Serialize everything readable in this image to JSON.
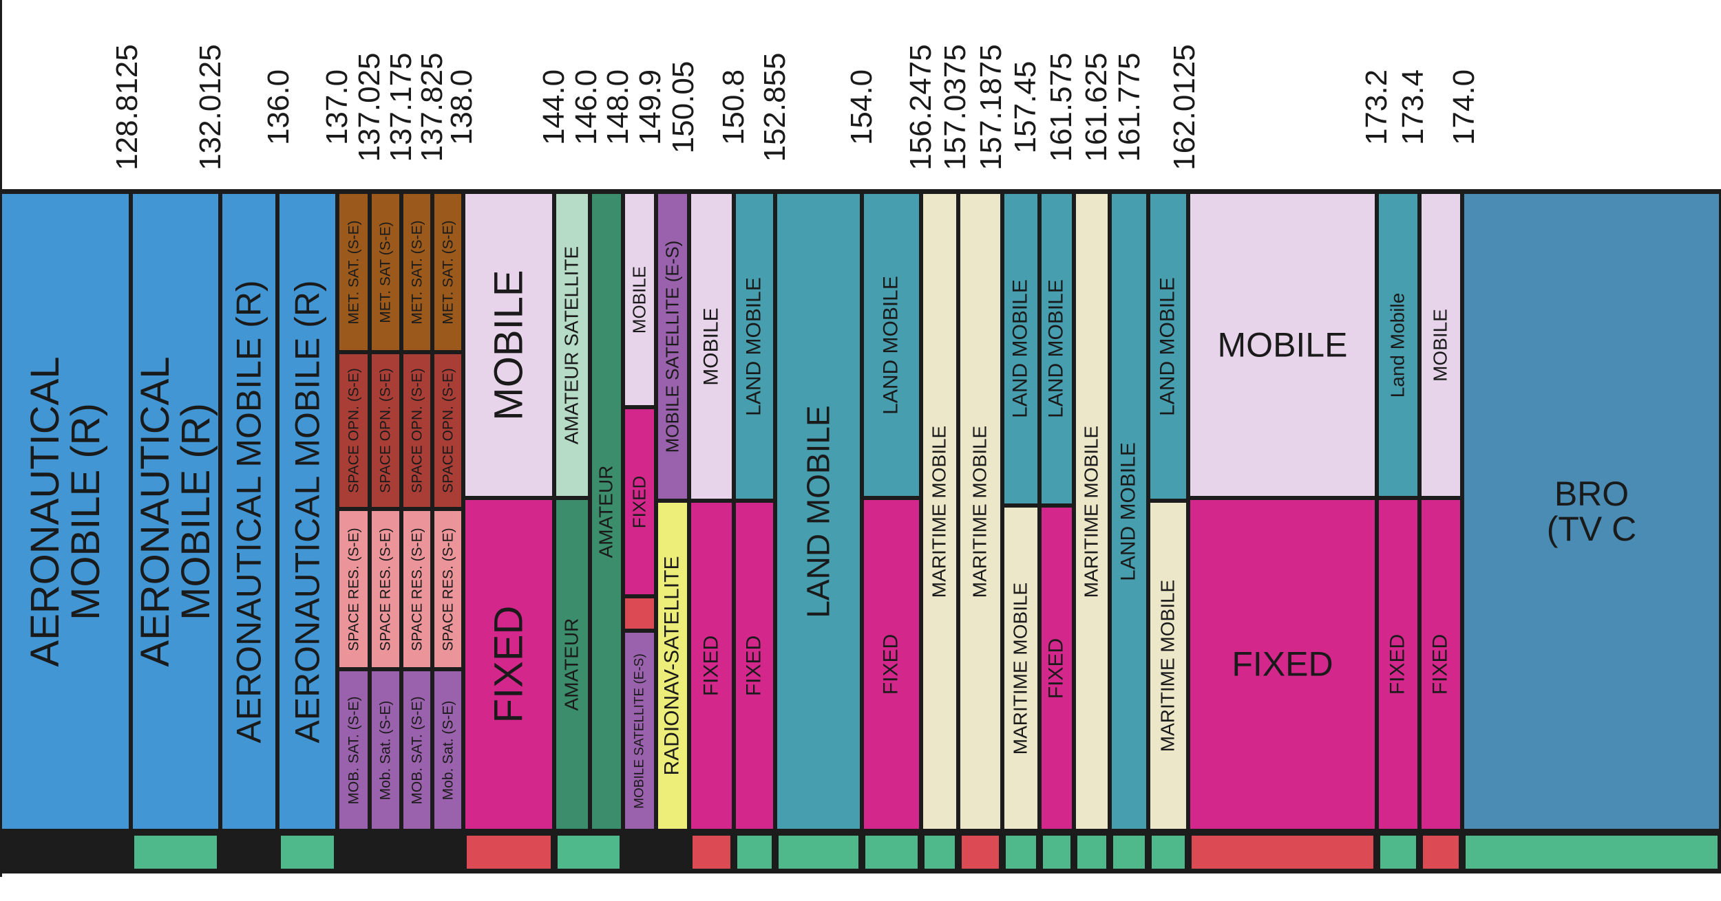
{
  "colors": {
    "aeronautical_mobile": "#4196d3",
    "fixed": "#d3278b",
    "mobile": "#e8d4ea",
    "land_mobile": "#469eae",
    "maritime_mobile": "#ece7c9",
    "amateur": "#3c8d6b",
    "amateur_satellite": "#b6dcc7",
    "met_sat": "#9b5a1c",
    "space_opn": "#a93e36",
    "space_res": "#eb959a",
    "mob_sat": "#9a62ac",
    "radionav_sat": "#edee7a",
    "broadcasting": "#4a8cb4",
    "status_green": "#4fb98b",
    "status_red": "#dc4a53",
    "status_black": "#1c1c1c"
  },
  "frequencies": [
    "128.8125",
    "132.0125",
    "136.0",
    "137.0",
    "137.025",
    "137.175",
    "137.825",
    "138.0",
    "144.0",
    "146.0",
    "148.0",
    "149.9",
    "150.05",
    "150.8",
    "152.855",
    "154.0",
    "156.2475",
    "157.0375",
    "157.1875",
    "157.45",
    "161.575",
    "161.625",
    "161.775",
    "162.0125",
    "173.2",
    "173.4",
    "174.0"
  ],
  "labels": {
    "aero_mobile_r_1": "AERONAUTICAL\nMOBILE (R)",
    "aero_mobile_r_2": "AERONAUTICAL\nMOBILE (R)",
    "aero_mobile_r_3": "AERONAUTICAL MOBILE (R)",
    "aero_mobile_r_4": "AERONAUTICAL MOBILE (R)",
    "met_sat_upper": "MET. SAT. (S-E)",
    "met_sat_mixed": "MET. SAT (S-E)",
    "space_opn": "SPACE OPN. (S-E)",
    "space_res": "SPACE RES. (S-E)",
    "mob_sat_upper": "MOB. SAT. (S-E)",
    "mob_sat_mixed": "Mob. Sat. (S-E)",
    "mobile": "MOBILE",
    "fixed": "FIXED",
    "amateur_satellite": "AMATEUR SATELLITE",
    "amateur": "AMATEUR",
    "mobile_satellite_es_1": "MOBILE SATELLITE (E-S)",
    "mobile_satellite_es_2": "MOBILE SATELLITE (E-S)",
    "radionav_satellite": "RADIONAV-SATELLITE",
    "land_mobile": "LAND MOBILE",
    "land_mobile_mixed": "Land Mobile",
    "maritime_mobile": "MARITIME MOBILE",
    "broadcasting": "BRO\n(TV C"
  }
}
